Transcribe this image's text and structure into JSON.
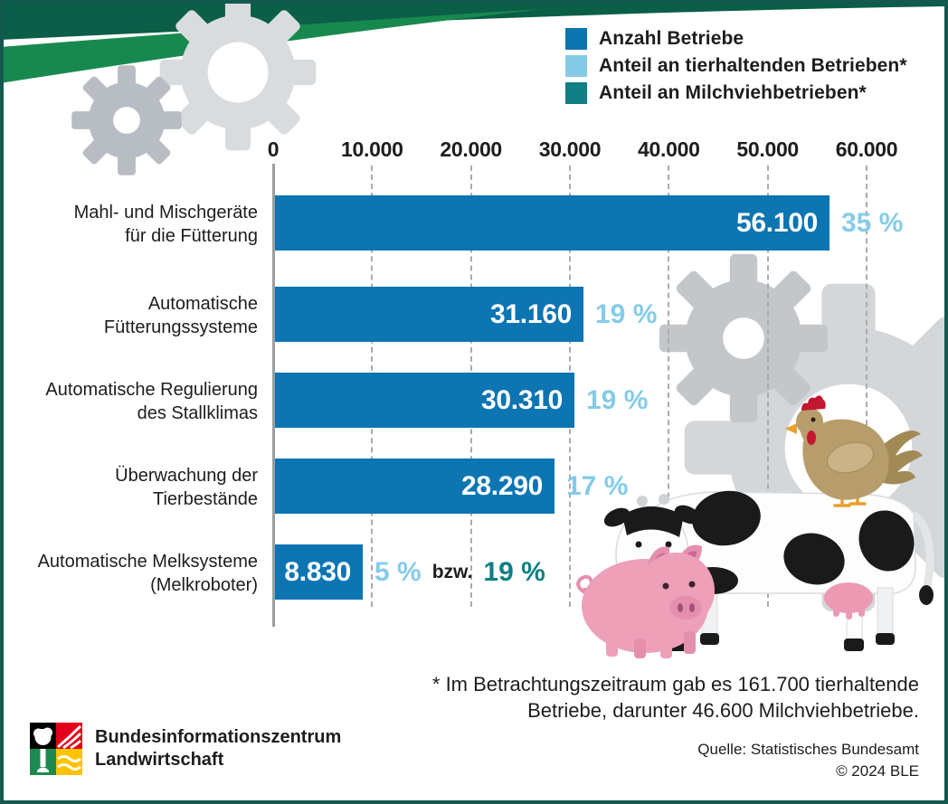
{
  "legend": {
    "items": [
      {
        "label": "Anzahl Betriebe",
        "color": "#0c75b2"
      },
      {
        "label": "Anteil an tierhaltenden Betrieben*",
        "color": "#85cbe8"
      },
      {
        "label": "Anteil an Milchviehbetrieben*",
        "color": "#0f7f84"
      }
    ]
  },
  "chart_data": {
    "type": "bar",
    "orientation": "horizontal",
    "x_axis": {
      "min": 0,
      "max": 60000,
      "tick_labels": [
        "0",
        "10.000",
        "20.000",
        "30.000",
        "40.000",
        "50.000",
        "60.000"
      ],
      "grid": "dashed"
    },
    "legend_position": "top-right",
    "rows": [
      {
        "label_lines": [
          "Mahl- und Mischgeräte",
          "für die Fütterung"
        ],
        "value": 56100,
        "value_label": "56.100",
        "pct_tierhaltend": "35 %"
      },
      {
        "label_lines": [
          "Automatische",
          "Fütterungssysteme"
        ],
        "value": 31160,
        "value_label": "31.160",
        "pct_tierhaltend": "19 %"
      },
      {
        "label_lines": [
          "Automatische Regulierung",
          "des Stallklimas"
        ],
        "value": 30310,
        "value_label": "30.310",
        "pct_tierhaltend": "19 %"
      },
      {
        "label_lines": [
          "Überwachung der",
          "Tierbestände"
        ],
        "value": 28290,
        "value_label": "28.290",
        "pct_tierhaltend": "17 %"
      },
      {
        "label_lines": [
          "Automatische Melksysteme",
          "(Melkroboter)"
        ],
        "value": 8830,
        "value_label": "8.830",
        "pct_tierhaltend": "5 %",
        "connector": "bzw.",
        "pct_milchvieh": "19 %"
      }
    ]
  },
  "footnote": {
    "line1": "* Im Betrachtungszeitraum gab es 161.700 tierhaltende",
    "line2": "Betriebe, darunter 46.600 Milchviehbetriebe."
  },
  "branding": {
    "org_line1": "Bundesinformationszentrum",
    "org_line2": "Landwirtschaft"
  },
  "source": {
    "line1": "Quelle: Statistisches Bundesamt",
    "line2": "© 2024 BLE"
  },
  "colors": {
    "bar_blue": "#0c75b2",
    "light_blue": "#85cbe8",
    "teal": "#0f7f84",
    "dark_green": "#0b5e47",
    "medium_green": "#17894f",
    "border_green": "#14594e",
    "logo_red": "#e2001a",
    "logo_green": "#1d8a4f",
    "logo_yellow": "#fdc300"
  },
  "decor_icons": [
    "gear-icon",
    "gear-icon",
    "gear-icon",
    "gear-icon",
    "chicken-icon",
    "cow-icon",
    "pig-icon"
  ]
}
